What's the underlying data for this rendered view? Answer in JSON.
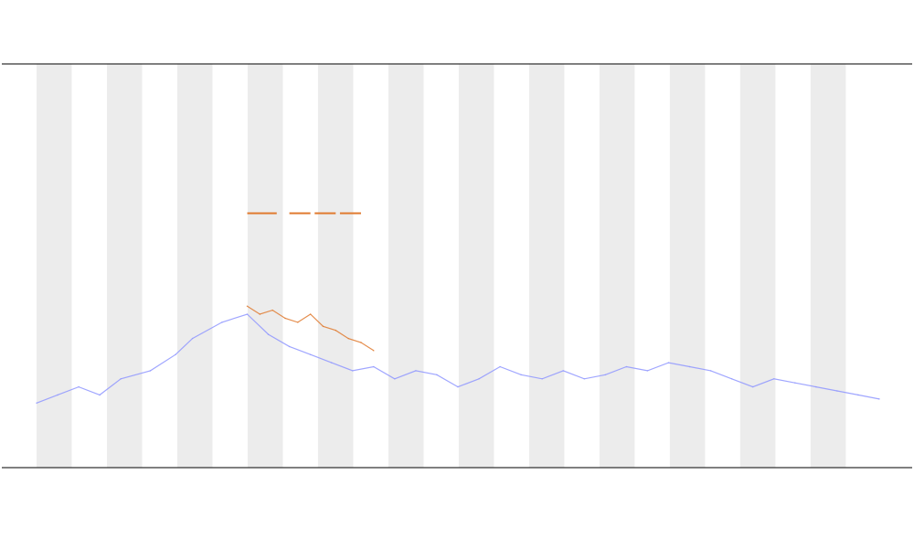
{
  "chart_data": {
    "type": "line",
    "title": "",
    "subtitle": [
      "",
      ""
    ],
    "xlabel": "",
    "ylabel": "",
    "x_ticks": [],
    "x": {
      "start": 0,
      "end": 200
    },
    "bands": {
      "count": 12,
      "spacing_x": 16.7,
      "width_x": 8.35,
      "start_x": 0,
      "color": "#ececec"
    },
    "legend": {
      "position": "left",
      "entries": []
    },
    "series": [
      {
        "color": "#8f97ff",
        "points": [
          [
            0,
            0.16
          ],
          [
            5,
            0.18
          ],
          [
            10,
            0.2
          ],
          [
            15,
            0.18
          ],
          [
            20,
            0.22
          ],
          [
            27,
            0.24
          ],
          [
            33,
            0.28
          ],
          [
            37,
            0.32
          ],
          [
            44,
            0.36
          ],
          [
            50,
            0.38
          ],
          [
            55,
            0.33
          ],
          [
            60,
            0.3
          ],
          [
            65,
            0.28
          ],
          [
            70,
            0.26
          ],
          [
            75,
            0.24
          ],
          [
            80,
            0.25
          ],
          [
            85,
            0.22
          ],
          [
            90,
            0.24
          ],
          [
            95,
            0.23
          ],
          [
            100,
            0.2
          ],
          [
            105,
            0.22
          ],
          [
            110,
            0.25
          ],
          [
            115,
            0.23
          ],
          [
            120,
            0.22
          ],
          [
            125,
            0.24
          ],
          [
            130,
            0.22
          ],
          [
            135,
            0.23
          ],
          [
            140,
            0.25
          ],
          [
            145,
            0.24
          ],
          [
            150,
            0.26
          ],
          [
            155,
            0.25
          ],
          [
            160,
            0.24
          ],
          [
            165,
            0.22
          ],
          [
            170,
            0.2
          ],
          [
            175,
            0.22
          ],
          [
            180,
            0.21
          ],
          [
            185,
            0.2
          ],
          [
            190,
            0.19
          ],
          [
            195,
            0.18
          ],
          [
            200,
            0.17
          ]
        ]
      },
      {
        "color": "#e07a2f",
        "points": [
          [
            50,
            0.4
          ],
          [
            53,
            0.38
          ],
          [
            56,
            0.39
          ],
          [
            59,
            0.37
          ],
          [
            62,
            0.36
          ],
          [
            65,
            0.38
          ],
          [
            68,
            0.35
          ],
          [
            71,
            0.34
          ],
          [
            74,
            0.32
          ],
          [
            77,
            0.31
          ],
          [
            80,
            0.29
          ]
        ]
      },
      {
        "color": "#e8e235",
        "points": []
      },
      {
        "color": "#222222",
        "points": []
      }
    ],
    "markers": [
      {
        "x_start": 50,
        "x_end": 57,
        "level": 0.63,
        "color": "#e07a2f"
      },
      {
        "x_start": 60,
        "x_end": 65,
        "level": 0.63,
        "color": "#e07a2f"
      },
      {
        "x_start": 66,
        "x_end": 71,
        "level": 0.63,
        "color": "#e07a2f"
      },
      {
        "x_start": 72,
        "x_end": 77,
        "level": 0.63,
        "color": "#e07a2f"
      }
    ],
    "ylim": [
      0,
      1
    ],
    "grid": false
  }
}
